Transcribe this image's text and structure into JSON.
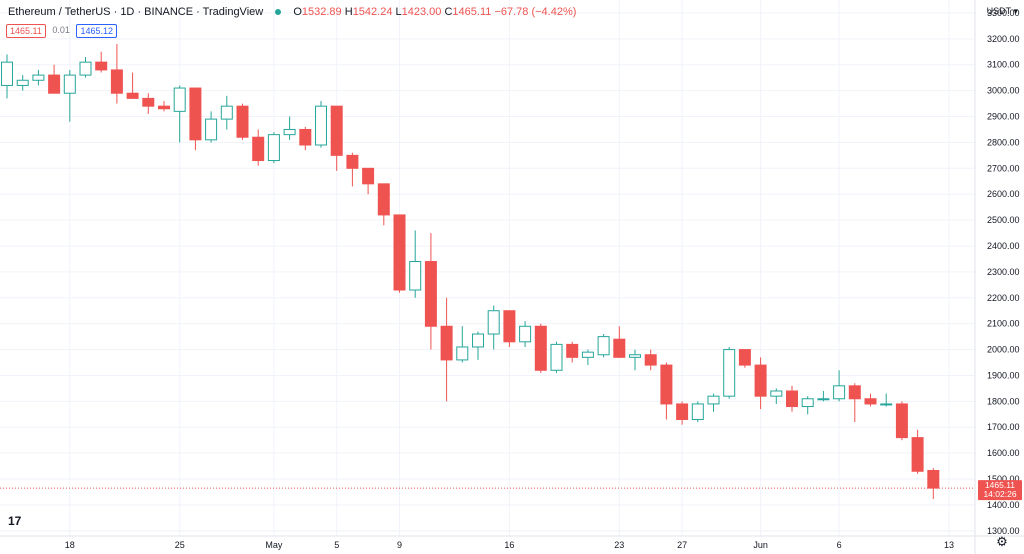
{
  "header": {
    "symbol": "Ethereum / TetherUS",
    "interval": "1D",
    "exchange": "BINANCE",
    "source": "TradingView",
    "status_color": "#26a69a",
    "o_label": "O",
    "o": "1532.89",
    "h_label": "H",
    "h": "1542.24",
    "l_label": "L",
    "l": "1423.00",
    "c_label": "C",
    "c": "1465.11",
    "change": "−67.78 (−4.42%)",
    "bid": "1465.11",
    "spread": "0.01",
    "ask": "1465.12"
  },
  "currency": "USDT",
  "colors": {
    "up": "#26a69a",
    "down": "#ef5350",
    "grid": "#f0f3fa",
    "text": "#131722"
  },
  "chart_data": {
    "type": "candlestick",
    "ylim": [
      1280,
      3350
    ],
    "y_ticks": [
      1300,
      1400,
      1500,
      1600,
      1700,
      1800,
      1900,
      2000,
      2100,
      2200,
      2300,
      2400,
      2500,
      2600,
      2700,
      2800,
      2900,
      3000,
      3100,
      3200,
      3300
    ],
    "x_ticks": [
      {
        "label": "18",
        "day": 4
      },
      {
        "label": "25",
        "day": 11
      },
      {
        "label": "May",
        "day": 17
      },
      {
        "label": "5",
        "day": 21
      },
      {
        "label": "9",
        "day": 25
      },
      {
        "label": "16",
        "day": 32
      },
      {
        "label": "23",
        "day": 39
      },
      {
        "label": "27",
        "day": 43
      },
      {
        "label": "Jun",
        "day": 48
      },
      {
        "label": "6",
        "day": 53
      },
      {
        "label": "13",
        "day": 60
      }
    ],
    "last_price": "1465.11",
    "last_price_value": 1465.11,
    "countdown": "14:02:26",
    "candles": [
      {
        "o": 3020,
        "h": 3140,
        "l": 2970,
        "c": 3110
      },
      {
        "o": 3020,
        "h": 3060,
        "l": 3000,
        "c": 3040
      },
      {
        "o": 3040,
        "h": 3080,
        "l": 3020,
        "c": 3060
      },
      {
        "o": 3060,
        "h": 3100,
        "l": 2990,
        "c": 2990
      },
      {
        "o": 2990,
        "h": 3080,
        "l": 2880,
        "c": 3060
      },
      {
        "o": 3060,
        "h": 3130,
        "l": 3050,
        "c": 3110
      },
      {
        "o": 3110,
        "h": 3150,
        "l": 3070,
        "c": 3080
      },
      {
        "o": 3080,
        "h": 3180,
        "l": 2950,
        "c": 2990
      },
      {
        "o": 2990,
        "h": 3070,
        "l": 2980,
        "c": 2970
      },
      {
        "o": 2970,
        "h": 2990,
        "l": 2910,
        "c": 2940
      },
      {
        "o": 2940,
        "h": 2960,
        "l": 2920,
        "c": 2930
      },
      {
        "o": 2920,
        "h": 3020,
        "l": 2800,
        "c": 3010
      },
      {
        "o": 3010,
        "h": 3010,
        "l": 2770,
        "c": 2810
      },
      {
        "o": 2810,
        "h": 2920,
        "l": 2800,
        "c": 2890
      },
      {
        "o": 2890,
        "h": 2980,
        "l": 2850,
        "c": 2940
      },
      {
        "o": 2940,
        "h": 2950,
        "l": 2810,
        "c": 2820
      },
      {
        "o": 2820,
        "h": 2850,
        "l": 2710,
        "c": 2730
      },
      {
        "o": 2730,
        "h": 2840,
        "l": 2720,
        "c": 2830
      },
      {
        "o": 2830,
        "h": 2900,
        "l": 2810,
        "c": 2850
      },
      {
        "o": 2850,
        "h": 2860,
        "l": 2770,
        "c": 2790
      },
      {
        "o": 2790,
        "h": 2960,
        "l": 2780,
        "c": 2940
      },
      {
        "o": 2940,
        "h": 2940,
        "l": 2690,
        "c": 2750
      },
      {
        "o": 2750,
        "h": 2760,
        "l": 2630,
        "c": 2700
      },
      {
        "o": 2700,
        "h": 2700,
        "l": 2600,
        "c": 2640
      },
      {
        "o": 2640,
        "h": 2640,
        "l": 2480,
        "c": 2520
      },
      {
        "o": 2520,
        "h": 2520,
        "l": 2220,
        "c": 2230
      },
      {
        "o": 2230,
        "h": 2460,
        "l": 2200,
        "c": 2340
      },
      {
        "o": 2340,
        "h": 2450,
        "l": 2000,
        "c": 2090
      },
      {
        "o": 2090,
        "h": 2200,
        "l": 1800,
        "c": 1960
      },
      {
        "o": 1960,
        "h": 2090,
        "l": 1950,
        "c": 2010
      },
      {
        "o": 2010,
        "h": 2070,
        "l": 1960,
        "c": 2060
      },
      {
        "o": 2060,
        "h": 2170,
        "l": 2000,
        "c": 2150
      },
      {
        "o": 2150,
        "h": 2150,
        "l": 2010,
        "c": 2030
      },
      {
        "o": 2030,
        "h": 2110,
        "l": 2010,
        "c": 2090
      },
      {
        "o": 2090,
        "h": 2100,
        "l": 1910,
        "c": 1920
      },
      {
        "o": 1920,
        "h": 2030,
        "l": 1910,
        "c": 2020
      },
      {
        "o": 2020,
        "h": 2030,
        "l": 1950,
        "c": 1970
      },
      {
        "o": 1970,
        "h": 2000,
        "l": 1940,
        "c": 1990
      },
      {
        "o": 1980,
        "h": 2060,
        "l": 1970,
        "c": 2050
      },
      {
        "o": 2040,
        "h": 2090,
        "l": 1970,
        "c": 1970
      },
      {
        "o": 1970,
        "h": 2000,
        "l": 1920,
        "c": 1980
      },
      {
        "o": 1980,
        "h": 2000,
        "l": 1920,
        "c": 1940
      },
      {
        "o": 1940,
        "h": 1950,
        "l": 1730,
        "c": 1790
      },
      {
        "o": 1790,
        "h": 1800,
        "l": 1710,
        "c": 1730
      },
      {
        "o": 1730,
        "h": 1800,
        "l": 1720,
        "c": 1790
      },
      {
        "o": 1790,
        "h": 1830,
        "l": 1760,
        "c": 1820
      },
      {
        "o": 1820,
        "h": 2010,
        "l": 1810,
        "c": 2000
      },
      {
        "o": 2000,
        "h": 2000,
        "l": 1930,
        "c": 1940
      },
      {
        "o": 1940,
        "h": 1970,
        "l": 1770,
        "c": 1820
      },
      {
        "o": 1820,
        "h": 1850,
        "l": 1790,
        "c": 1840
      },
      {
        "o": 1840,
        "h": 1860,
        "l": 1760,
        "c": 1780
      },
      {
        "o": 1780,
        "h": 1820,
        "l": 1750,
        "c": 1810
      },
      {
        "o": 1810,
        "h": 1840,
        "l": 1800,
        "c": 1810
      },
      {
        "o": 1810,
        "h": 1920,
        "l": 1800,
        "c": 1860
      },
      {
        "o": 1860,
        "h": 1870,
        "l": 1720,
        "c": 1810
      },
      {
        "o": 1810,
        "h": 1830,
        "l": 1780,
        "c": 1790
      },
      {
        "o": 1790,
        "h": 1830,
        "l": 1780,
        "c": 1790
      },
      {
        "o": 1790,
        "h": 1800,
        "l": 1650,
        "c": 1660
      },
      {
        "o": 1660,
        "h": 1690,
        "l": 1520,
        "c": 1530
      },
      {
        "o": 1533,
        "h": 1542,
        "l": 1423,
        "c": 1465
      }
    ]
  }
}
